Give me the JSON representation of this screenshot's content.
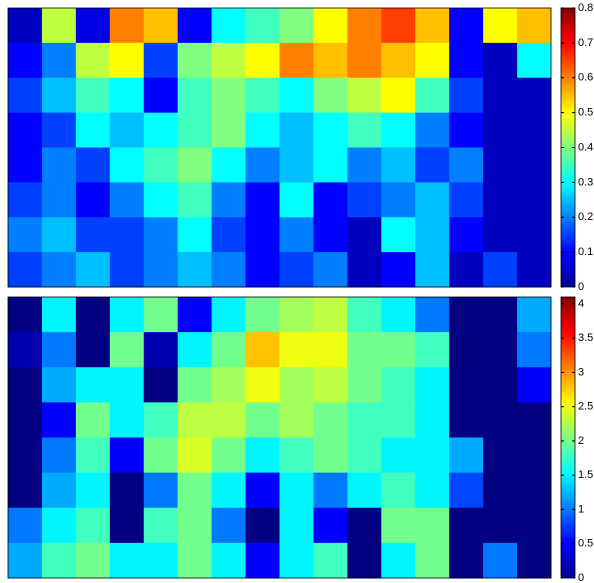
{
  "chart_data": [
    {
      "type": "heatmap",
      "clim": [
        0,
        0.8
      ],
      "cticks": [
        0,
        0.1,
        0.2,
        0.3,
        0.4,
        0.5,
        0.6,
        0.7,
        0.8
      ],
      "values": [
        [
          0.05,
          0.45,
          0.08,
          0.6,
          0.55,
          0.1,
          0.3,
          0.35,
          0.4,
          0.5,
          0.6,
          0.65,
          0.55,
          0.1,
          0.5,
          0.55
        ],
        [
          0.1,
          0.2,
          0.45,
          0.5,
          0.15,
          0.4,
          0.45,
          0.5,
          0.6,
          0.55,
          0.6,
          0.55,
          0.5,
          0.1,
          0.05,
          0.3
        ],
        [
          0.15,
          0.25,
          0.35,
          0.3,
          0.1,
          0.35,
          0.4,
          0.35,
          0.3,
          0.4,
          0.45,
          0.5,
          0.35,
          0.15,
          0.05,
          0.05
        ],
        [
          0.1,
          0.15,
          0.3,
          0.25,
          0.3,
          0.35,
          0.4,
          0.3,
          0.25,
          0.3,
          0.35,
          0.3,
          0.2,
          0.1,
          0.05,
          0.05
        ],
        [
          0.1,
          0.2,
          0.15,
          0.3,
          0.35,
          0.4,
          0.3,
          0.2,
          0.25,
          0.3,
          0.2,
          0.25,
          0.15,
          0.2,
          0.05,
          0.05
        ],
        [
          0.15,
          0.2,
          0.1,
          0.2,
          0.3,
          0.35,
          0.2,
          0.1,
          0.3,
          0.1,
          0.15,
          0.2,
          0.25,
          0.15,
          0.05,
          0.05
        ],
        [
          0.2,
          0.25,
          0.15,
          0.15,
          0.2,
          0.3,
          0.15,
          0.1,
          0.2,
          0.1,
          0.05,
          0.3,
          0.25,
          0.1,
          0.05,
          0.05
        ],
        [
          0.15,
          0.2,
          0.25,
          0.15,
          0.2,
          0.25,
          0.2,
          0.1,
          0.15,
          0.2,
          0.05,
          0.1,
          0.25,
          0.05,
          0.15,
          0.05
        ]
      ]
    },
    {
      "type": "heatmap",
      "clim": [
        0,
        4.1
      ],
      "cticks": [
        0,
        0.5,
        1,
        1.5,
        2,
        2.5,
        3,
        3.5,
        4
      ],
      "values": [
        [
          0,
          1.5,
          0,
          1.5,
          2,
          0.5,
          1.5,
          2,
          2.2,
          2.3,
          1.8,
          1.5,
          1,
          0,
          0,
          1.2
        ],
        [
          0.2,
          1,
          0,
          2,
          0.2,
          1.5,
          2,
          2.8,
          2.5,
          2.5,
          2,
          2,
          1.8,
          0,
          0,
          1
        ],
        [
          0,
          1.2,
          1.5,
          1.5,
          0,
          2,
          2.2,
          2.5,
          2.2,
          2.3,
          2,
          1.8,
          1.5,
          0,
          0,
          0.5
        ],
        [
          0,
          0.5,
          2,
          1.5,
          1.8,
          2.3,
          2.3,
          2,
          2.2,
          2,
          1.8,
          1.8,
          1.5,
          0,
          0,
          0
        ],
        [
          0,
          1,
          1.8,
          0.5,
          2,
          2.4,
          2,
          1.5,
          1.8,
          2,
          1.8,
          1.5,
          1.5,
          1.2,
          0,
          0
        ],
        [
          0,
          1.2,
          1.5,
          0,
          1,
          2,
          1.5,
          0.5,
          1.5,
          1,
          1.5,
          1.8,
          1.5,
          0.8,
          0,
          0
        ],
        [
          1,
          1.5,
          1.8,
          0,
          1.8,
          2,
          1,
          0,
          1.5,
          0.5,
          0,
          2,
          2,
          0,
          0,
          0
        ],
        [
          1.2,
          1.8,
          2,
          1.5,
          1.5,
          2,
          1.5,
          0.5,
          1.5,
          1.8,
          0,
          1.5,
          2,
          0,
          1,
          0
        ]
      ]
    }
  ]
}
